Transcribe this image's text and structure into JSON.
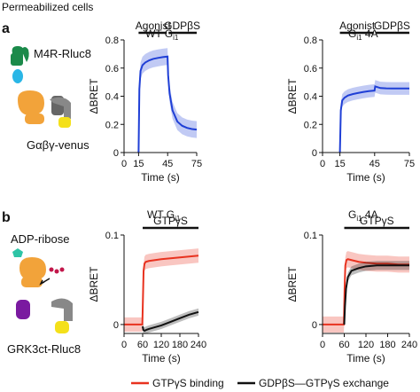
{
  "figure": {
    "header": "Permeabilized cells",
    "panel_a": "a",
    "panel_b": "b",
    "schematic_a": {
      "receptor_label": "M4R-Rluc8",
      "g_label": "Gαβγ-venus"
    },
    "schematic_b": {
      "adp_label": "ADP-ribose",
      "grk_label": "GRK3ct-Rluc8"
    },
    "legend": {
      "items": [
        {
          "label": "GTPγS binding",
          "color": "#e8321f"
        },
        {
          "label": "GDPβS—GTPγS exchange",
          "color": "#111111"
        }
      ]
    },
    "colors": {
      "blue": "#1f3fd6",
      "blue_band": "#9fb8ee",
      "red": "#e8321f",
      "red_band": "#f6a99e",
      "black": "#111111",
      "grey_band": "#bbbbbb"
    }
  },
  "chart_data": [
    {
      "type": "line",
      "title": "WT G",
      "title_sub": "i1",
      "xlabel": "Time (s)",
      "ylabel": "ΔBRET",
      "xticks": [
        0,
        15,
        45,
        75
      ],
      "xtick_labels": [
        "0",
        "15",
        "45",
        "75"
      ],
      "yticks": [
        0,
        0.2,
        0.4,
        0.6,
        0.8
      ],
      "ytick_labels": [
        "0",
        "0.2",
        "0.4",
        "0.6",
        "0.8"
      ],
      "xlim": [
        0,
        75
      ],
      "ylim": [
        0,
        0.8
      ],
      "bars": [
        {
          "label": "Agonist",
          "from": 15,
          "to": 45
        },
        {
          "label": "GDPβS",
          "from": 45,
          "to": 75
        }
      ],
      "series": [
        {
          "color": "#1f3fd6",
          "band": 0.06,
          "x": [
            15,
            15.8,
            17,
            19,
            22,
            26,
            30,
            35,
            40,
            44.9,
            45.5,
            47,
            50,
            55,
            60,
            65,
            70,
            75
          ],
          "y": [
            0,
            0.45,
            0.58,
            0.62,
            0.64,
            0.655,
            0.665,
            0.672,
            0.678,
            0.682,
            0.55,
            0.42,
            0.3,
            0.22,
            0.19,
            0.175,
            0.167,
            0.163
          ]
        }
      ]
    },
    {
      "type": "line",
      "title": "G",
      "title_sub": "i1",
      "title_suffix": " 4A",
      "xlabel": "Time (s)",
      "ylabel": "ΔBRET",
      "xticks": [
        0,
        15,
        45,
        75
      ],
      "xtick_labels": [
        "0",
        "15",
        "45",
        "75"
      ],
      "yticks": [
        0,
        0.2,
        0.4,
        0.6,
        0.8
      ],
      "ytick_labels": [
        "0",
        "0.2",
        "0.4",
        "0.6",
        "0.8"
      ],
      "xlim": [
        0,
        75
      ],
      "ylim": [
        0,
        0.8
      ],
      "bars": [
        {
          "label": "Agonist",
          "from": 15,
          "to": 45
        },
        {
          "label": "GDPβS",
          "from": 45,
          "to": 75
        }
      ],
      "series": [
        {
          "color": "#1f3fd6",
          "band": 0.045,
          "x": [
            15,
            15.8,
            17,
            19,
            22,
            26,
            30,
            35,
            40,
            44.9,
            45.5,
            47,
            50,
            55,
            60,
            65,
            70,
            75
          ],
          "y": [
            0,
            0.3,
            0.37,
            0.39,
            0.405,
            0.415,
            0.422,
            0.43,
            0.436,
            0.44,
            0.47,
            0.466,
            0.458,
            0.456,
            0.455,
            0.455,
            0.455,
            0.455
          ]
        }
      ]
    },
    {
      "type": "line",
      "title": "WT G",
      "title_sub": "i1",
      "xlabel": "Time (s)",
      "ylabel": "ΔBRET",
      "xticks": [
        0,
        60,
        120,
        180,
        240
      ],
      "xtick_labels": [
        "0",
        "60",
        "120",
        "180",
        "240"
      ],
      "yticks": [
        0,
        0.1
      ],
      "ytick_labels": [
        "0",
        "0.1"
      ],
      "xlim": [
        0,
        240
      ],
      "ylim": [
        -0.01,
        0.1
      ],
      "bars": [
        {
          "label": "GTPγS",
          "from": 60,
          "to": 240
        }
      ],
      "series": [
        {
          "name": "GTPγS binding",
          "color": "#e8321f",
          "band": 0.008,
          "x": [
            0,
            30,
            59,
            61,
            63,
            66,
            70,
            80,
            100,
            120,
            150,
            180,
            210,
            240
          ],
          "y": [
            0,
            0,
            0,
            0.03,
            0.06,
            0.068,
            0.07,
            0.071,
            0.072,
            0.073,
            0.074,
            0.075,
            0.076,
            0.077
          ]
        },
        {
          "name": "GDPβS—GTPγS exchange",
          "color": "#111111",
          "band": 0.004,
          "x": [
            60,
            62,
            66,
            72,
            80,
            100,
            120,
            150,
            180,
            210,
            240
          ],
          "y": [
            -0.002,
            -0.006,
            -0.007,
            -0.006,
            -0.005,
            -0.003,
            -0.001,
            0.003,
            0.007,
            0.011,
            0.014
          ]
        }
      ]
    },
    {
      "type": "line",
      "title": "G",
      "title_sub": "i1",
      "title_suffix": " 4A",
      "xlabel": "Time (s)",
      "ylabel": "ΔBRET",
      "xticks": [
        0,
        60,
        120,
        180,
        240
      ],
      "xtick_labels": [
        "0",
        "60",
        "120",
        "180",
        "240"
      ],
      "yticks": [
        0,
        0.1
      ],
      "ytick_labels": [
        "0",
        "0.1"
      ],
      "xlim": [
        0,
        240
      ],
      "ylim": [
        -0.01,
        0.1
      ],
      "bars": [
        {
          "label": "GTPγS",
          "from": 60,
          "to": 240
        }
      ],
      "series": [
        {
          "name": "GTPγS binding",
          "color": "#e8321f",
          "band": 0.009,
          "x": [
            0,
            30,
            59,
            61,
            63,
            66,
            70,
            80,
            100,
            120,
            150,
            180,
            210,
            240
          ],
          "y": [
            0,
            0,
            0,
            0.04,
            0.066,
            0.072,
            0.073,
            0.072,
            0.07,
            0.069,
            0.068,
            0.068,
            0.067,
            0.067
          ]
        },
        {
          "name": "GDPβS—GTPγS exchange",
          "color": "#111111",
          "band": 0.005,
          "x": [
            60,
            62,
            65,
            70,
            80,
            100,
            120,
            150,
            180,
            210,
            240
          ],
          "y": [
            0,
            0.02,
            0.04,
            0.053,
            0.06,
            0.063,
            0.065,
            0.066,
            0.066,
            0.066,
            0.066
          ]
        }
      ]
    }
  ]
}
